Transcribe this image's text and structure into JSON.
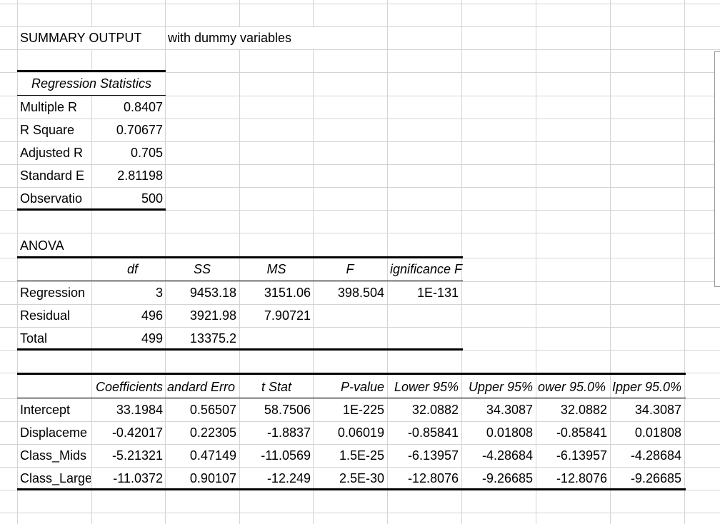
{
  "summary": {
    "title": "SUMMARY OUTPUT",
    "note": "with dummy variables"
  },
  "regression_statistics": {
    "header": "Regression Statistics",
    "rows": [
      {
        "label": "Multiple R",
        "value": "0.8407"
      },
      {
        "label": "R Square",
        "value": "0.70677"
      },
      {
        "label": "Adjusted R",
        "value": "0.705"
      },
      {
        "label": "Standard E",
        "value": "2.81198"
      },
      {
        "label": "Observatio",
        "value": "500"
      }
    ]
  },
  "anova": {
    "title": "ANOVA",
    "headers": [
      "df",
      "SS",
      "MS",
      "F",
      "ignificance F"
    ],
    "rows": [
      {
        "label": "Regression",
        "df": "3",
        "ss": "9453.18",
        "ms": "3151.06",
        "f": "398.504",
        "sig": "1E-131"
      },
      {
        "label": "Residual",
        "df": "496",
        "ss": "3921.98",
        "ms": "7.90721",
        "f": "",
        "sig": ""
      },
      {
        "label": "Total",
        "df": "499",
        "ss": "13375.2",
        "ms": "",
        "f": "",
        "sig": ""
      }
    ]
  },
  "coefficients": {
    "headers": [
      "Coefficients",
      "andard Erro",
      "t Stat",
      "P-value",
      "Lower 95%",
      "Upper 95%",
      "ower 95.0%",
      "Ipper 95.0%"
    ],
    "rows": [
      {
        "label": "Intercept",
        "values": [
          "33.1984",
          "0.56507",
          "58.7506",
          "1E-225",
          "32.0882",
          "34.3087",
          "32.0882",
          "34.3087"
        ]
      },
      {
        "label": "Displaceme",
        "values": [
          "-0.42017",
          "0.22305",
          "-1.8837",
          "0.06019",
          "-0.85841",
          "0.01808",
          "-0.85841",
          "0.01808"
        ]
      },
      {
        "label": "Class_Mids",
        "values": [
          "-5.21321",
          "0.47149",
          "-11.0569",
          "1.5E-25",
          "-6.13957",
          "-4.28684",
          "-6.13957",
          "-4.28684"
        ]
      },
      {
        "label": "Class_Large",
        "values": [
          "-11.0372",
          "0.90107",
          "-12.249",
          "2.5E-30",
          "-12.8076",
          "-9.26685",
          "-12.8076",
          "-9.26685"
        ]
      }
    ]
  }
}
